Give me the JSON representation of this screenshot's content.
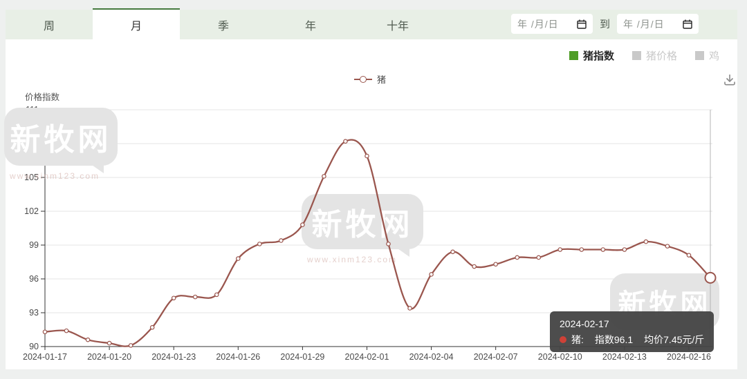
{
  "tabs": {
    "items": [
      {
        "label": "周",
        "active": false
      },
      {
        "label": "月",
        "active": true
      },
      {
        "label": "季",
        "active": false
      },
      {
        "label": "年",
        "active": false
      },
      {
        "label": "十年",
        "active": false
      }
    ]
  },
  "date_filter": {
    "start_placeholder": "年 /月/日",
    "separator": "到",
    "end_placeholder": "年 /月/日"
  },
  "series_toggles": [
    {
      "label": "猪指数",
      "active": true,
      "color": "#4f9d27"
    },
    {
      "label": "猪价格",
      "active": false,
      "color": "#c9c9c9"
    },
    {
      "label": "鸡",
      "active": false,
      "color": "#c9c9c9"
    }
  ],
  "legend": {
    "label": "猪",
    "color": "#9a564e"
  },
  "watermark": {
    "text": "新牧网",
    "subtext": "www.xinm123.com"
  },
  "chart_data": {
    "type": "line",
    "smooth": true,
    "ylabel": "价格指数",
    "ylim": [
      90,
      111
    ],
    "ytick_interval": 3,
    "xtick_every": 3,
    "grid": true,
    "x": [
      "2024-01-17",
      "2024-01-18",
      "2024-01-19",
      "2024-01-20",
      "2024-01-21",
      "2024-01-22",
      "2024-01-23",
      "2024-01-24",
      "2024-01-25",
      "2024-01-26",
      "2024-01-27",
      "2024-01-28",
      "2024-01-29",
      "2024-01-30",
      "2024-01-31",
      "2024-02-01",
      "2024-02-02",
      "2024-02-03",
      "2024-02-04",
      "2024-02-05",
      "2024-02-06",
      "2024-02-07",
      "2024-02-08",
      "2024-02-09",
      "2024-02-10",
      "2024-02-11",
      "2024-02-12",
      "2024-02-13",
      "2024-02-14",
      "2024-02-15",
      "2024-02-16",
      "2024-02-17"
    ],
    "series": [
      {
        "name": "猪",
        "color": "#9a564e",
        "values": [
          91.3,
          91.4,
          90.6,
          90.3,
          90.1,
          91.7,
          94.3,
          94.4,
          94.6,
          97.8,
          99.1,
          99.4,
          100.8,
          105.1,
          108.2,
          106.9,
          99.1,
          93.4,
          96.4,
          98.4,
          97.1,
          97.3,
          97.9,
          97.9,
          98.6,
          98.6,
          98.6,
          98.6,
          99.3,
          98.9,
          98.1,
          96.1
        ]
      }
    ]
  },
  "tooltip": {
    "date": "2024-02-17",
    "series_label": "猪:",
    "index_text": "指数96.1",
    "price_text": "均价7.45元/斤",
    "value": 96.1,
    "dot_color": "#cf4137"
  }
}
